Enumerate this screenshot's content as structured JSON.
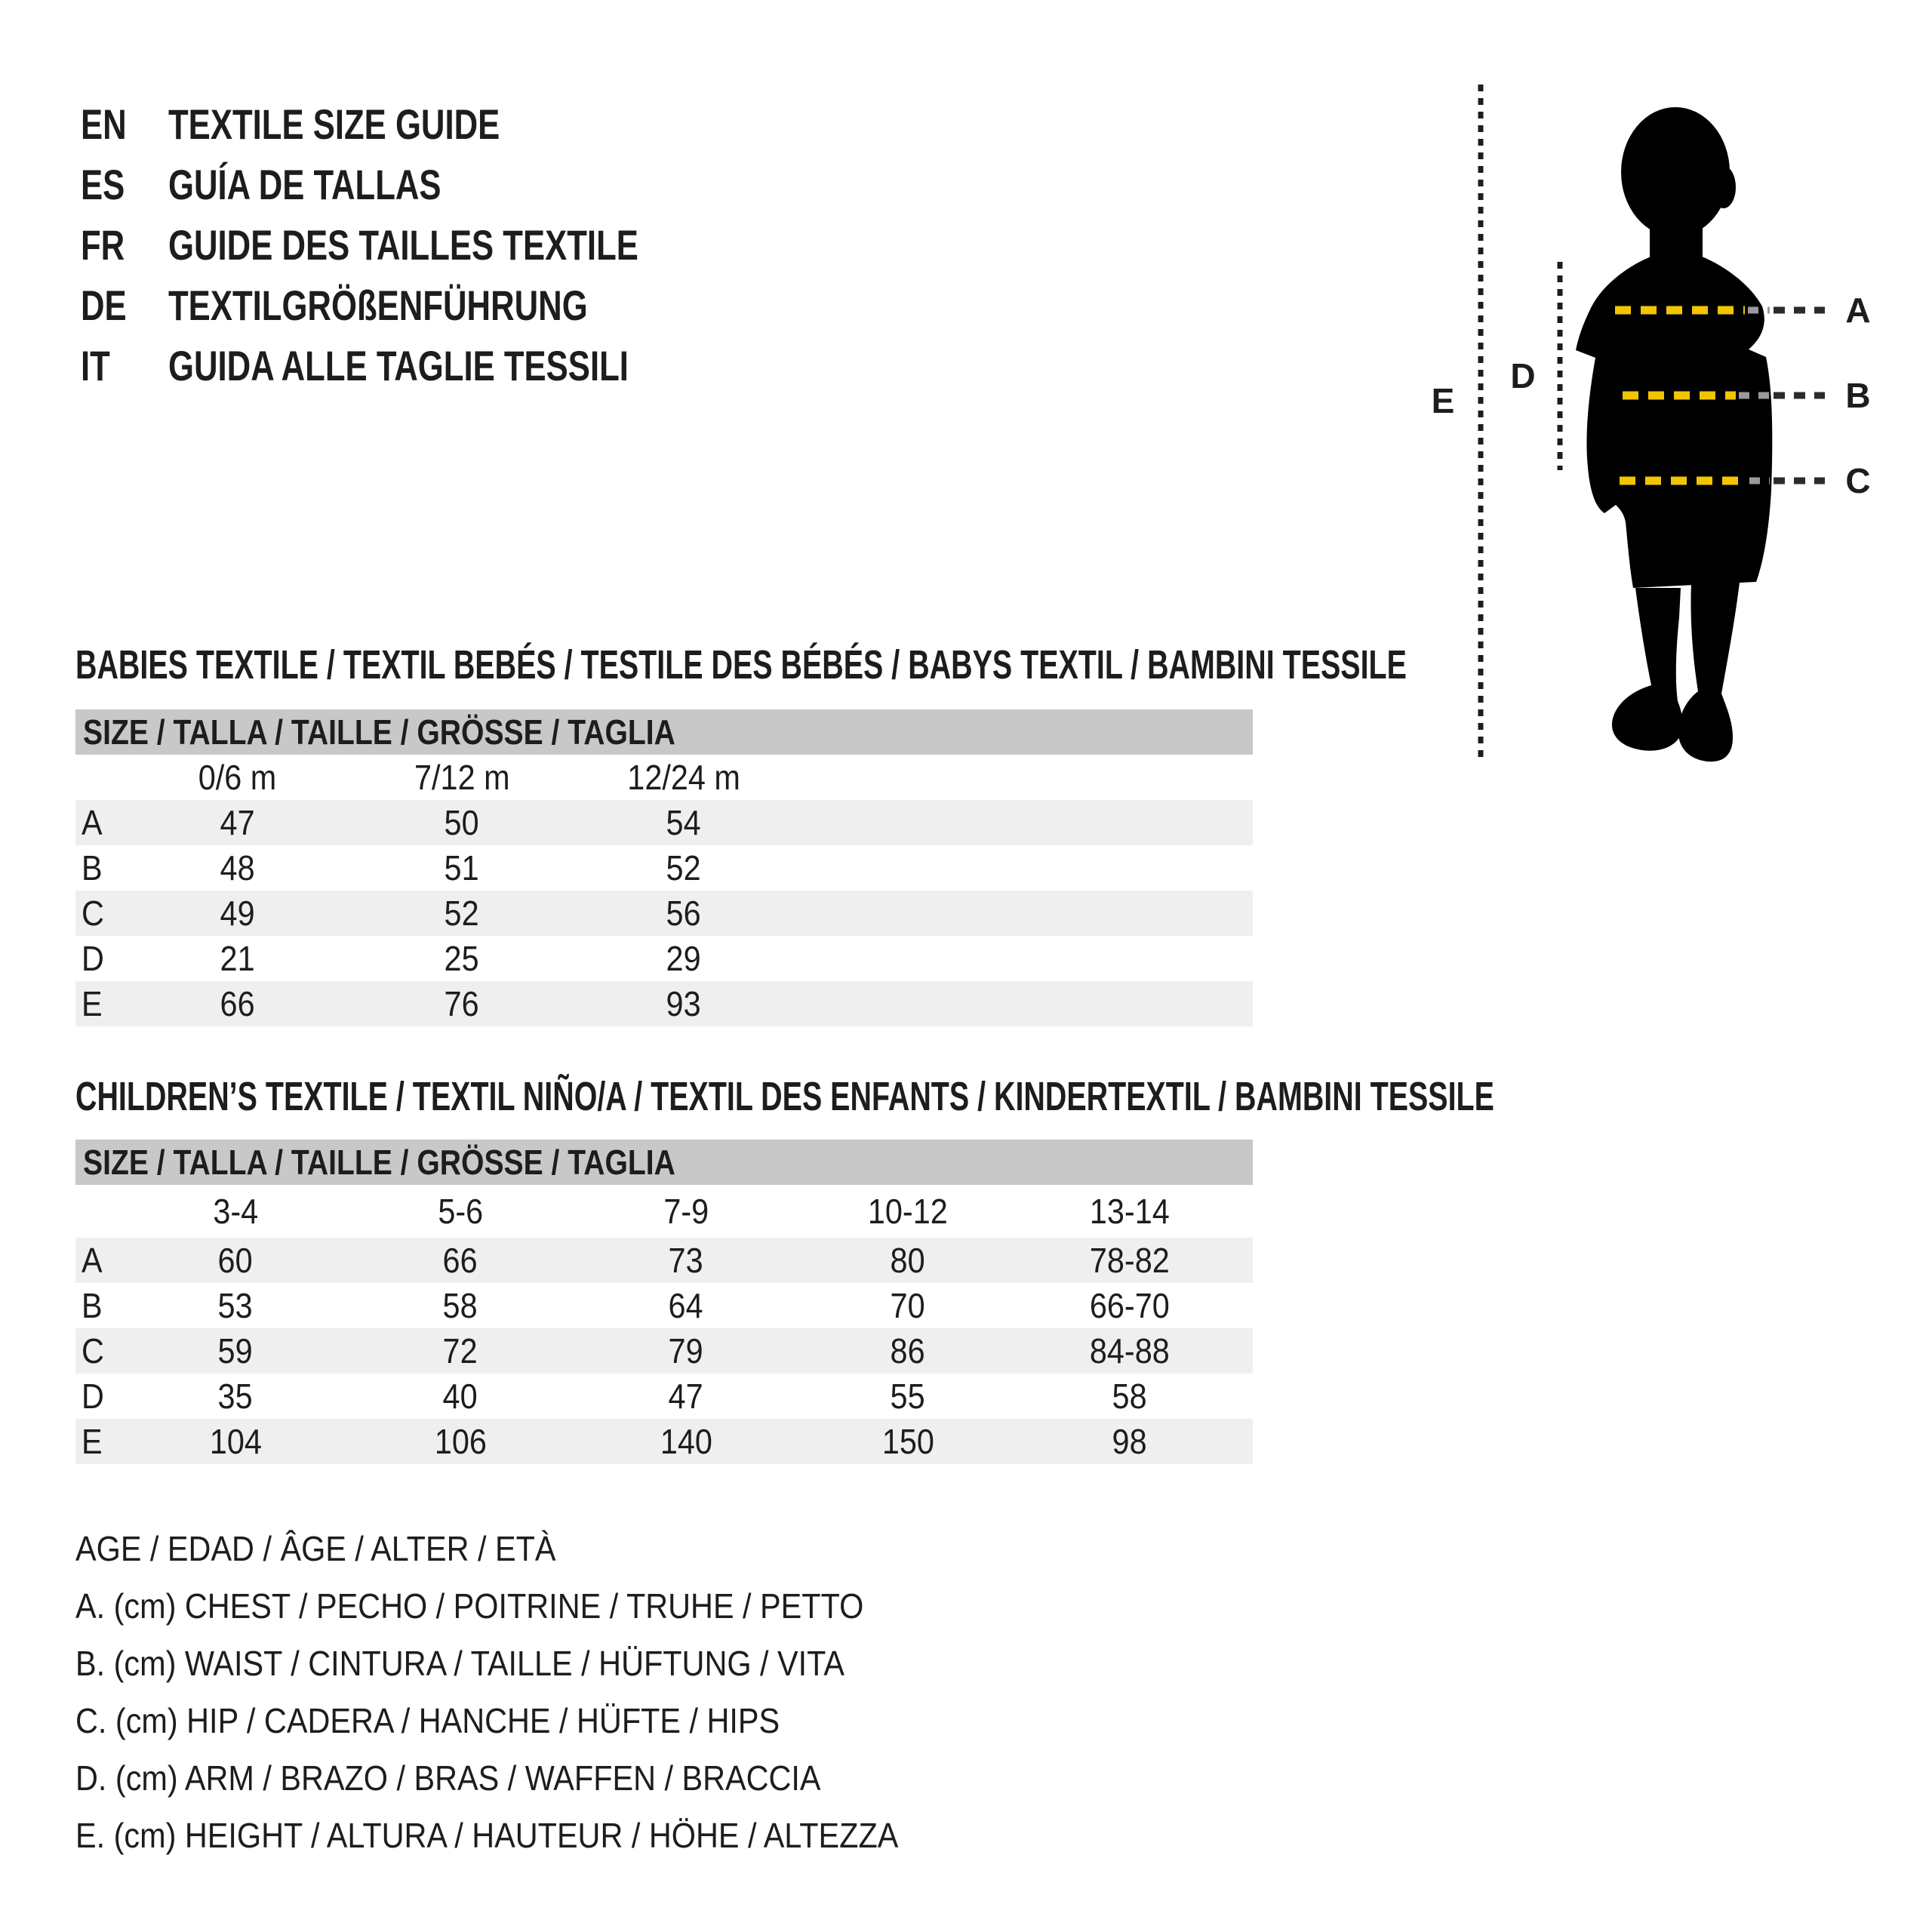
{
  "page": {
    "background": "#ffffff",
    "text_color": "#1d1d1b"
  },
  "header": {
    "languages": [
      {
        "code": "EN",
        "title": "TEXTILE SIZE GUIDE"
      },
      {
        "code": "ES",
        "title": "GUÍA DE TALLAS"
      },
      {
        "code": "FR",
        "title": "GUIDE DES TAILLES TEXTILE"
      },
      {
        "code": "DE",
        "title": "TEXTILGRÖßENFÜHRUNG"
      },
      {
        "code": "IT",
        "title": "GUIDA ALLE TAGLIE TESSILI"
      }
    ]
  },
  "figure": {
    "markers": {
      "chest": "A",
      "waist": "B",
      "hip": "C",
      "arm": "D",
      "height": "E"
    },
    "colors": {
      "silhouette": "#000000",
      "measure_yellow": "#F2C500",
      "leader_faint": "#9a9a9a",
      "leader_dark": "#2b2b2b",
      "vertical_dots": "#1d1d1d"
    }
  },
  "babies_table": {
    "title": "BABIES TEXTILE / TEXTIL BEBÉS / TESTILE DES BÉBÉS / BABYS TEXTIL / BAMBINI TESSILE",
    "size_header": "SIZE / TALLA / TAILLE / GRÖSSE / TAGLIA",
    "columns": [
      "0/6 m",
      "7/12 m",
      "12/24 m"
    ],
    "rows": [
      {
        "label": "A",
        "values": [
          "47",
          "50",
          "54"
        ]
      },
      {
        "label": "B",
        "values": [
          "48",
          "51",
          "52"
        ]
      },
      {
        "label": "C",
        "values": [
          "49",
          "52",
          "56"
        ]
      },
      {
        "label": "D",
        "values": [
          "21",
          "25",
          "29"
        ]
      },
      {
        "label": "E",
        "values": [
          "66",
          "76",
          "93"
        ]
      }
    ]
  },
  "children_table": {
    "title": "CHILDREN’S TEXTILE / TEXTIL NIÑO/A / TEXTIL DES ENFANTS / KINDERTEXTIL / BAMBINI TESSILE",
    "size_header": "SIZE / TALLA / TAILLE / GRÖSSE / TAGLIA",
    "columns": [
      "3-4",
      "5-6",
      "7-9",
      "10-12",
      "13-14"
    ],
    "rows": [
      {
        "label": "A",
        "values": [
          "60",
          "66",
          "73",
          "80",
          "78-82"
        ]
      },
      {
        "label": "B",
        "values": [
          "53",
          "58",
          "64",
          "70",
          "66-70"
        ]
      },
      {
        "label": "C",
        "values": [
          "59",
          "72",
          "79",
          "86",
          "84-88"
        ]
      },
      {
        "label": "D",
        "values": [
          "35",
          "40",
          "47",
          "55",
          "58"
        ]
      },
      {
        "label": "E",
        "values": [
          "104",
          "106",
          "140",
          "150",
          "98"
        ]
      }
    ]
  },
  "legend": {
    "lines": [
      "AGE / EDAD / ÂGE / ALTER / ETÀ",
      "A. (cm) CHEST / PECHO / POITRINE / TRUHE / PETTO",
      "B. (cm) WAIST / CINTURA / TAILLE / HÜFTUNG / VITA",
      "C. (cm) HIP / CADERA / HANCHE / HÜFTE / HIPS",
      "D. (cm) ARM / BRAZO / BRAS / WAFFEN / BRACCIA",
      "E. (cm) HEIGHT / ALTURA / HAUTEUR / HÖHE / ALTEZZA"
    ]
  },
  "table_style": {
    "band_bg": "#c8c8c8",
    "row_shade": "#efefef"
  }
}
